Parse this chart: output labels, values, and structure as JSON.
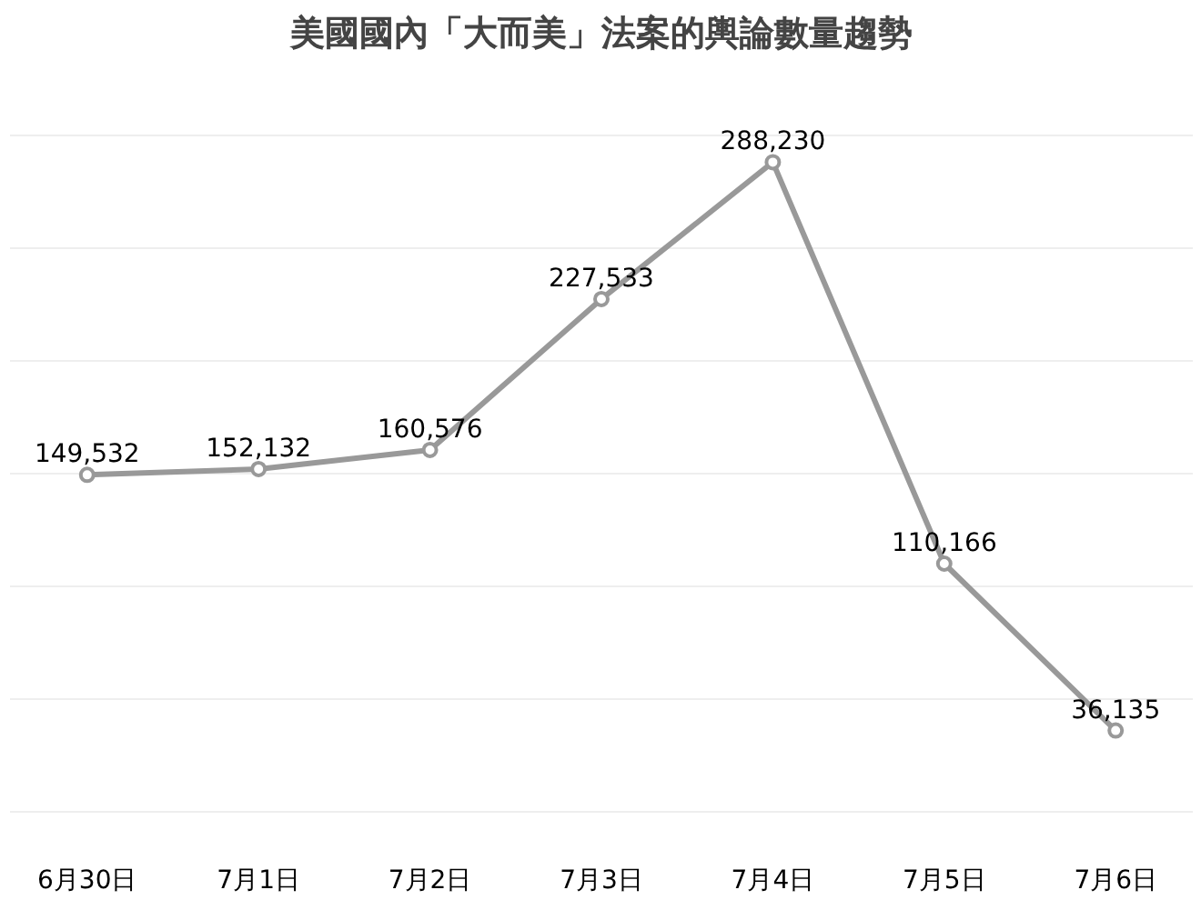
{
  "chart_data": {
    "type": "line",
    "title": "美國國內「大而美」法案的輿論數量趨勢",
    "categories": [
      "6月30日",
      "7月1日",
      "7月2日",
      "7月3日",
      "7月4日",
      "7月5日",
      "7月6日"
    ],
    "series": [
      {
        "color": "#999999",
        "values": [
          149532,
          152132,
          160576,
          227533,
          288230,
          110166,
          36135
        ],
        "value_labels": [
          "149,532",
          "152,132",
          "160,576",
          "227,533",
          "288,230",
          "110,166",
          "36,135"
        ]
      }
    ],
    "grid": "y",
    "tick_labels": "x",
    "marker": "circle",
    "line_style": "solid"
  }
}
